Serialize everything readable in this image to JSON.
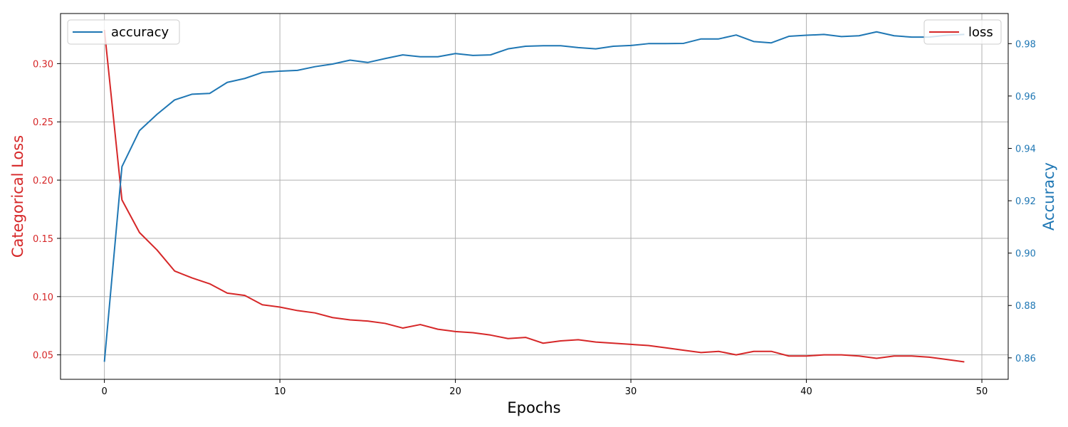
{
  "chart_data": {
    "type": "line",
    "x": [
      0,
      1,
      2,
      3,
      4,
      5,
      6,
      7,
      8,
      9,
      10,
      11,
      12,
      13,
      14,
      15,
      16,
      17,
      18,
      19,
      20,
      21,
      22,
      23,
      24,
      25,
      26,
      27,
      28,
      29,
      30,
      31,
      32,
      33,
      34,
      35,
      36,
      37,
      38,
      39,
      40,
      41,
      42,
      43,
      44,
      45,
      46,
      47,
      48,
      49
    ],
    "xlabel": "Epochs",
    "xlim": [
      -2.5,
      51.5
    ],
    "xticks": [
      0,
      10,
      20,
      30,
      40,
      50
    ],
    "grid": true,
    "series": [
      {
        "name": "loss",
        "axis": "left",
        "color": "#d62728",
        "values": [
          0.329,
          0.183,
          0.155,
          0.14,
          0.122,
          0.116,
          0.111,
          0.103,
          0.101,
          0.093,
          0.091,
          0.088,
          0.086,
          0.082,
          0.08,
          0.079,
          0.077,
          0.073,
          0.076,
          0.072,
          0.07,
          0.069,
          0.067,
          0.064,
          0.065,
          0.06,
          0.062,
          0.063,
          0.061,
          0.06,
          0.059,
          0.058,
          0.056,
          0.054,
          0.052,
          0.053,
          0.05,
          0.053,
          0.053,
          0.049,
          0.049,
          0.05,
          0.05,
          0.049,
          0.047,
          0.049,
          0.049,
          0.048,
          0.046,
          0.044
        ]
      },
      {
        "name": "accuracy",
        "axis": "right",
        "color": "#1f77b4",
        "values": [
          0.8585,
          0.933,
          0.9468,
          0.953,
          0.9585,
          0.9607,
          0.961,
          0.9652,
          0.9667,
          0.969,
          0.9695,
          0.9698,
          0.9712,
          0.9722,
          0.9737,
          0.9728,
          0.9743,
          0.9757,
          0.975,
          0.975,
          0.9762,
          0.9755,
          0.9757,
          0.978,
          0.979,
          0.9792,
          0.9792,
          0.9785,
          0.978,
          0.979,
          0.9793,
          0.98,
          0.98,
          0.9801,
          0.9818,
          0.9818,
          0.9833,
          0.9808,
          0.9803,
          0.9828,
          0.9832,
          0.9835,
          0.9827,
          0.983,
          0.9845,
          0.983,
          0.9825,
          0.9825,
          0.9832,
          0.9835
        ]
      }
    ],
    "y_left": {
      "label": "Categorical Loss",
      "color": "#d62728",
      "lim": [
        0.029,
        0.343
      ],
      "ticks": [
        0.05,
        0.1,
        0.15,
        0.2,
        0.25,
        0.3
      ],
      "tick_labels": [
        "0.05",
        "0.10",
        "0.15",
        "0.20",
        "0.25",
        "0.30"
      ]
    },
    "y_right": {
      "label": "Accuracy",
      "color": "#1f77b4",
      "lim": [
        0.8518,
        0.9915
      ],
      "ticks": [
        0.86,
        0.88,
        0.9,
        0.92,
        0.94,
        0.96,
        0.98
      ],
      "tick_labels": [
        "0.86",
        "0.88",
        "0.90",
        "0.92",
        "0.94",
        "0.96",
        "0.98"
      ]
    },
    "legends": [
      {
        "series": "accuracy",
        "label": "accuracy",
        "placement": "upper left"
      },
      {
        "series": "loss",
        "label": "loss",
        "placement": "upper right"
      }
    ]
  }
}
